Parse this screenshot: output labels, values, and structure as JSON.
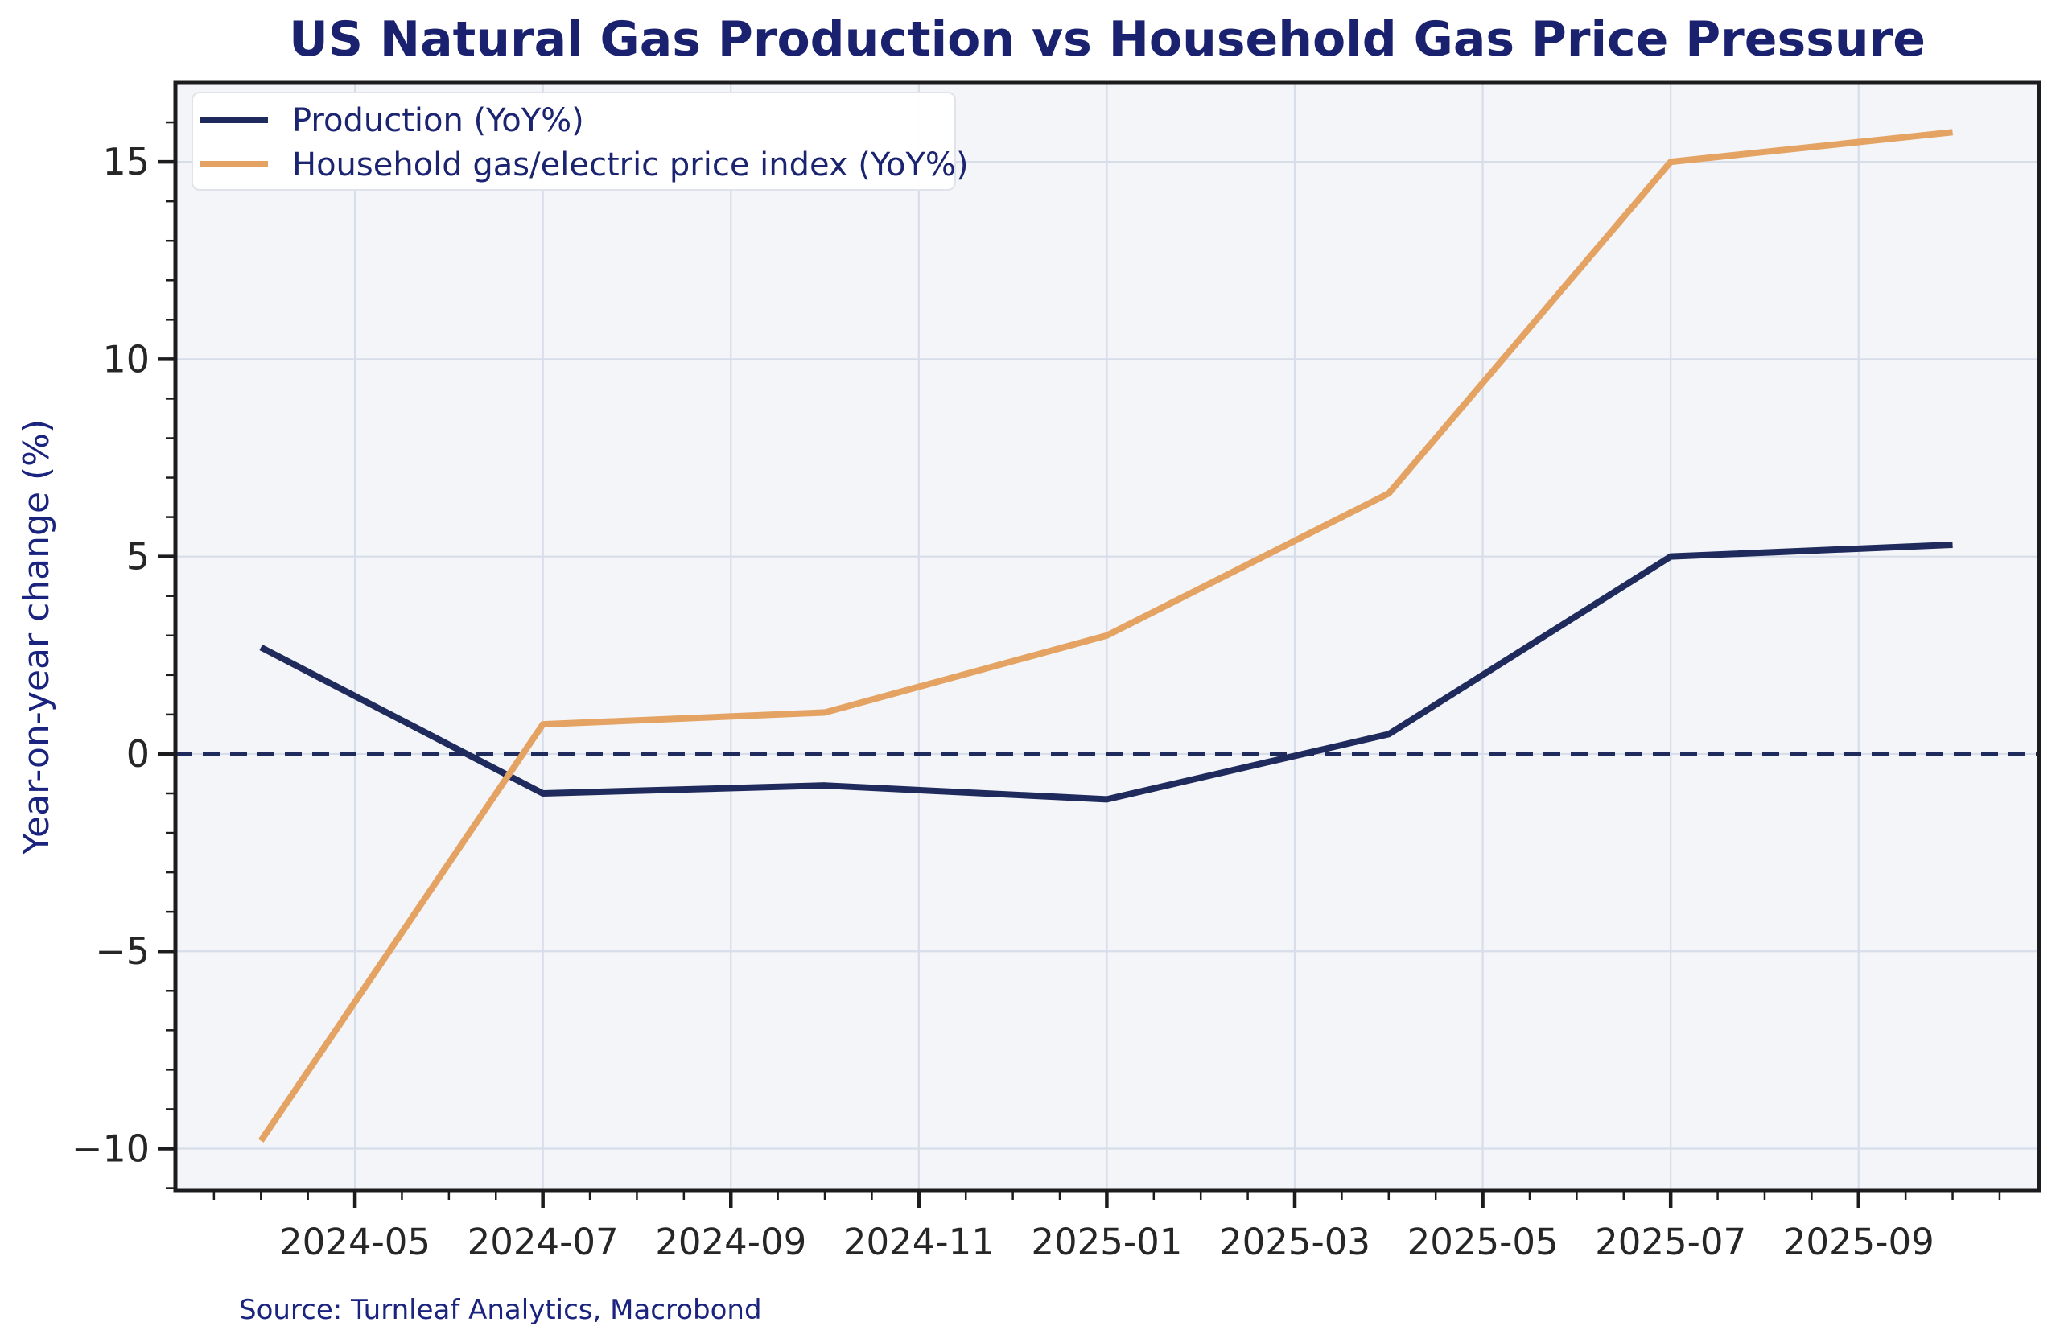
{
  "chart_data": {
    "type": "line",
    "title": "US Natural Gas Production vs Household Gas Price Pressure",
    "ylabel": "Year-on-year change (%)",
    "xlabel": "",
    "source_note": "Source: Turnleaf Analytics, Macrobond",
    "x": [
      "2024-04",
      "2024-07",
      "2024-10",
      "2025-01",
      "2025-04",
      "2025-07",
      "2025-10"
    ],
    "series": [
      {
        "name": "Production (YoY%)",
        "color": "#1f2b5c",
        "values": [
          2.7,
          -1.0,
          -0.8,
          -1.15,
          0.5,
          5.0,
          5.3
        ]
      },
      {
        "name": "Household gas/electric price index (YoY%)",
        "color": "#e4a363",
        "values": [
          -9.8,
          0.75,
          1.05,
          3.0,
          6.6,
          15.0,
          15.75
        ]
      }
    ],
    "x_tick_labels": [
      "2024-05",
      "2024-07",
      "2024-09",
      "2024-11",
      "2025-01",
      "2025-03",
      "2025-05",
      "2025-07",
      "2025-09"
    ],
    "y_ticks": [
      15,
      10,
      5,
      0,
      -5,
      -10
    ],
    "ylim": [
      -11.05,
      17.0
    ],
    "xlim_months": [
      -0.91,
      18.92
    ],
    "x_origin": "2024-04",
    "zero_line": {
      "y": 0,
      "style": "dashed",
      "color": "#1f2b5c"
    },
    "grid": true,
    "legend_position": "upper left",
    "colors": {
      "figure_background": "#ffffff",
      "plot_background": "#f4f5f8",
      "grid": "#d8ddea",
      "spine": "#1c1c1e",
      "tick": "#1c1c1e",
      "tick_label": "#262626",
      "title": "#1a2270",
      "axis_label": "#1a237e",
      "source": "#1a237e",
      "legend_text": "#1a2470",
      "legend_background": "#ffffff",
      "legend_border": "#e2e2ea"
    }
  }
}
